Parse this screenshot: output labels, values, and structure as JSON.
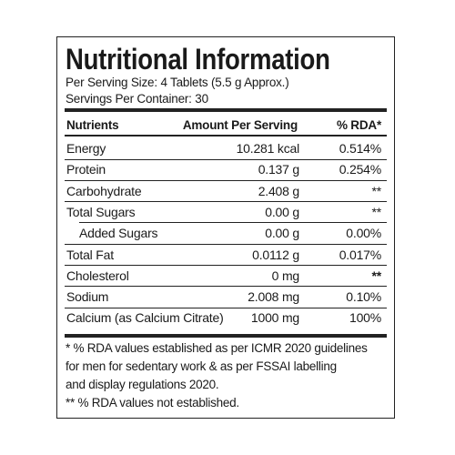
{
  "header": {
    "title": "Nutritional Information",
    "serving_size": "Per Serving Size: 4 Tablets (5.5 g Approx.)",
    "servings_per_container": "Servings Per Container: 30"
  },
  "table": {
    "columns": [
      "Nutrients",
      "Amount Per Serving",
      "% RDA*"
    ],
    "rows": [
      [
        "Energy",
        "10.281 kcal",
        "0.514%"
      ],
      [
        "Protein",
        "0.137 g",
        "0.254%"
      ],
      [
        "Carbohydrate",
        "2.408 g",
        "**"
      ],
      [
        "Total Sugars",
        "0.00 g",
        "**"
      ],
      [
        "Added Sugars",
        "0.00 g",
        "0.00%"
      ],
      [
        "Total Fat",
        "0.0112 g",
        "0.017%"
      ],
      [
        "Cholesterol",
        "0 mg",
        "**"
      ],
      [
        "Sodium",
        "2.008 mg",
        "0.10%"
      ],
      [
        "Calcium (as Calcium Citrate)",
        "1000 mg",
        "100%"
      ]
    ]
  },
  "footnotes": [
    "* % RDA values established as per ICMR 2020 guidelines",
    "for men for sedentary work & as per FSSAI labelling",
    "and display regulations 2020.",
    "** % RDA values not established."
  ]
}
